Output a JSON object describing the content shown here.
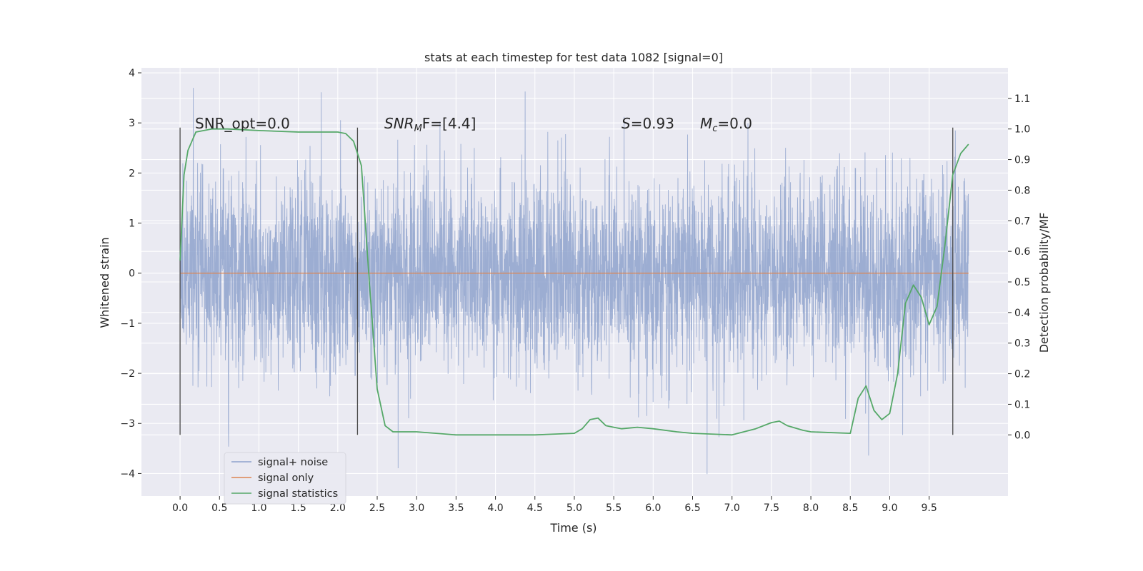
{
  "chart_data": {
    "type": "line",
    "title": "stats at each timestep for test data 1082 [signal=0]",
    "xlabel": "Time (s)",
    "ylabel_left": "Whitened strain",
    "ylabel_right": "Detection probability/MF",
    "xlim": [
      -0.49,
      10.5
    ],
    "ylim_left": [
      -4.45,
      4.1
    ],
    "ylim_right": [
      -0.2,
      1.2
    ],
    "x_ticks": [
      "0.0",
      "0.5",
      "1.0",
      "1.5",
      "2.0",
      "2.5",
      "3.0",
      "3.5",
      "4.0",
      "4.5",
      "5.0",
      "5.5",
      "6.0",
      "6.5",
      "7.0",
      "7.5",
      "8.0",
      "8.5",
      "9.0",
      "9.5"
    ],
    "y_ticks_left": [
      "−4",
      "−3",
      "−2",
      "−1",
      "0",
      "1",
      "2",
      "3",
      "4"
    ],
    "y_ticks_right": [
      "0.0",
      "0.1",
      "0.2",
      "0.3",
      "0.4",
      "0.5",
      "0.6",
      "0.7",
      "0.8",
      "0.9",
      "1.0",
      "1.1"
    ],
    "grid": true,
    "legend_placement": "lower-left",
    "annotations": {
      "snr_opt": "SNR_opt=0.0",
      "snr_mf_base": "SNR",
      "snr_mf_sub": "M",
      "snr_mf_rest": "F=[4.4]",
      "s_base": "S",
      "s_rest": "=0.93",
      "mc_base": "M",
      "mc_sub": "c",
      "mc_rest": "=0.0"
    },
    "vertical_markers": [
      0.0,
      2.25,
      9.8
    ],
    "series": [
      {
        "name": "signal+ noise",
        "color": "#8ea2cc",
        "axis": "left",
        "description_range": [
          -4.1,
          3.7
        ],
        "x_range": [
          0.0,
          10.0
        ]
      },
      {
        "name": "signal only",
        "color": "#dd8452",
        "axis": "left",
        "x": [
          0.0,
          10.0
        ],
        "y": [
          0.0,
          0.0
        ]
      },
      {
        "name": "signal statistics",
        "color": "#55a868",
        "axis": "right",
        "x": [
          0.0,
          0.05,
          0.1,
          0.2,
          0.4,
          0.6,
          1.0,
          1.5,
          2.0,
          2.1,
          2.2,
          2.3,
          2.4,
          2.5,
          2.6,
          2.7,
          2.8,
          2.9,
          3.0,
          3.5,
          4.0,
          4.5,
          5.0,
          5.1,
          5.2,
          5.3,
          5.4,
          5.5,
          5.6,
          5.8,
          6.0,
          6.3,
          6.5,
          7.0,
          7.3,
          7.5,
          7.6,
          7.7,
          7.9,
          8.0,
          8.5,
          8.6,
          8.7,
          8.8,
          8.9,
          9.0,
          9.1,
          9.2,
          9.3,
          9.4,
          9.5,
          9.6,
          9.7,
          9.8,
          9.9,
          10.0
        ],
        "y": [
          0.57,
          0.85,
          0.93,
          0.99,
          1.0,
          1.0,
          0.995,
          0.99,
          0.99,
          0.985,
          0.96,
          0.88,
          0.5,
          0.15,
          0.03,
          0.01,
          0.01,
          0.01,
          0.01,
          0.0,
          0.0,
          0.0,
          0.005,
          0.02,
          0.05,
          0.055,
          0.03,
          0.025,
          0.02,
          0.025,
          0.02,
          0.01,
          0.005,
          0.0,
          0.02,
          0.04,
          0.045,
          0.03,
          0.015,
          0.01,
          0.005,
          0.12,
          0.16,
          0.08,
          0.05,
          0.07,
          0.2,
          0.43,
          0.49,
          0.45,
          0.36,
          0.42,
          0.62,
          0.85,
          0.92,
          0.95
        ]
      }
    ]
  }
}
